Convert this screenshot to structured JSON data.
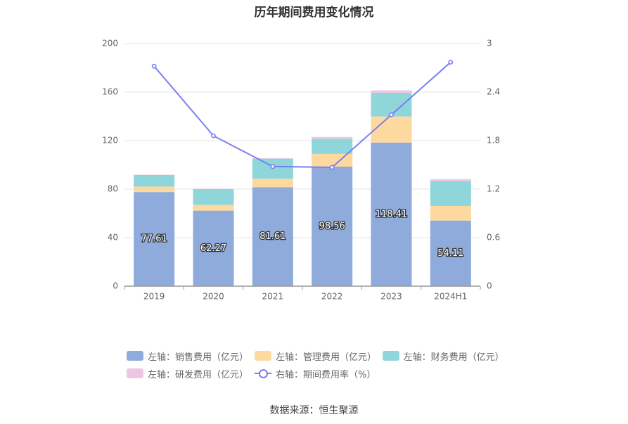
{
  "title": "历年期间费用变化情况",
  "source": "数据来源：恒生聚源",
  "legend": [
    {
      "label": "左轴：销售费用（亿元）",
      "color": "#8eabdb",
      "kind": "bar"
    },
    {
      "label": "左轴：管理费用（亿元）",
      "color": "#fdd9a0",
      "kind": "bar"
    },
    {
      "label": "左轴：财务费用（亿元）",
      "color": "#8ed6da",
      "kind": "bar"
    },
    {
      "label": "左轴：研发费用（亿元）",
      "color": "#ecc6e2",
      "kind": "bar"
    },
    {
      "label": "右轴：期间费用率（%）",
      "color": "#7b7ff0",
      "kind": "line"
    }
  ],
  "chart_data": {
    "type": "bar",
    "stacked": true,
    "categories": [
      "2019",
      "2020",
      "2021",
      "2022",
      "2023",
      "2024H1"
    ],
    "series": [
      {
        "name": "左轴：销售费用（亿元）",
        "axis": "left",
        "color": "#8eabdb",
        "values": [
          77.61,
          62.27,
          81.61,
          98.56,
          118.41,
          54.11
        ],
        "labels": [
          "77.61",
          "62.27",
          "81.61",
          "98.56",
          "118.41",
          "54.11"
        ]
      },
      {
        "name": "左轴：管理费用（亿元）",
        "axis": "left",
        "color": "#fdd9a0",
        "values": [
          4.5,
          4.8,
          7.0,
          10.5,
          21.5,
          12.0
        ]
      },
      {
        "name": "左轴：财务费用（亿元）",
        "axis": "left",
        "color": "#8ed6da",
        "values": [
          9.5,
          13.0,
          16.5,
          12.5,
          19.5,
          20.5
        ]
      },
      {
        "name": "左轴：研发费用（亿元）",
        "axis": "left",
        "color": "#ecc6e2",
        "values": [
          0.3,
          0.3,
          0.5,
          1.5,
          2.0,
          1.6
        ]
      },
      {
        "name": "右轴：期间费用率（%）",
        "axis": "right",
        "type": "line",
        "color": "#7b7ff0",
        "values": [
          2.72,
          1.86,
          1.48,
          1.47,
          2.12,
          2.77
        ]
      }
    ],
    "y_left": {
      "min": 0,
      "max": 200,
      "ticks": [
        "0",
        "40",
        "80",
        "120",
        "160",
        "200"
      ]
    },
    "y_right": {
      "min": 0,
      "max": 3,
      "ticks": [
        "0",
        "0.6",
        "1.2",
        "1.8",
        "2.4",
        "3"
      ]
    },
    "grid": true,
    "legend_position": "bottom"
  }
}
